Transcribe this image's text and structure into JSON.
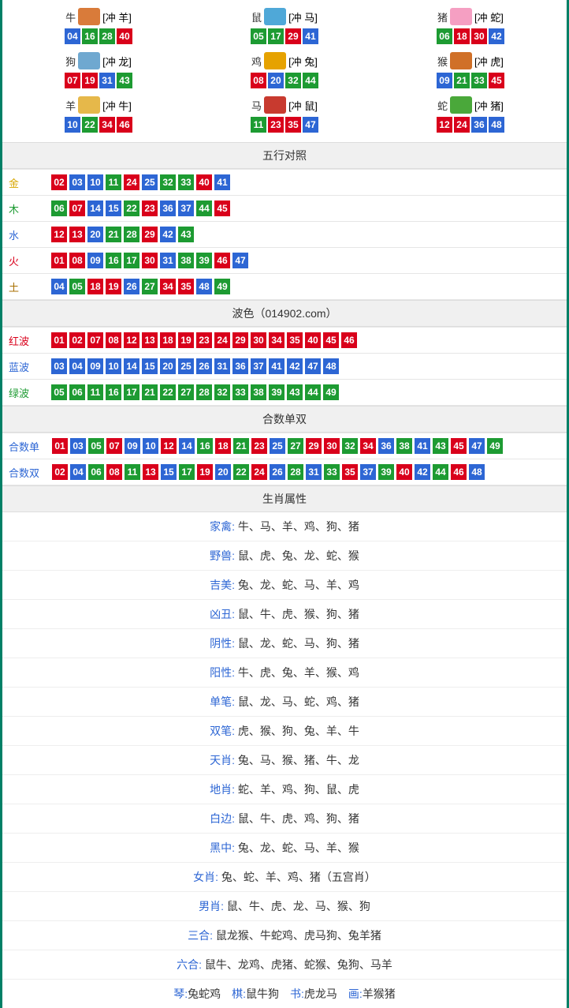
{
  "colors": {
    "ball_red": "#d9001b",
    "ball_blue": "#2d66d4",
    "ball_green": "#1d9b32",
    "border_outer": "#008066",
    "header_bg": "#f0f0f0"
  },
  "zodiac_icon_colors": {
    "牛": "#d97b3a",
    "鼠": "#4fa8d8",
    "猪": "#f59fc2",
    "狗": "#6fa8d0",
    "鸡": "#e6a200",
    "猴": "#d07028",
    "羊": "#e6b84a",
    "马": "#c83a2f",
    "蛇": "#4aa83a"
  },
  "zodiac": [
    {
      "name": "牛",
      "tag": "[冲 羊]",
      "nums": [
        [
          "04",
          "blue"
        ],
        [
          "16",
          "green"
        ],
        [
          "28",
          "green"
        ],
        [
          "40",
          "red"
        ]
      ]
    },
    {
      "name": "鼠",
      "tag": "[冲 马]",
      "nums": [
        [
          "05",
          "green"
        ],
        [
          "17",
          "green"
        ],
        [
          "29",
          "red"
        ],
        [
          "41",
          "blue"
        ]
      ]
    },
    {
      "name": "猪",
      "tag": "[冲 蛇]",
      "nums": [
        [
          "06",
          "green"
        ],
        [
          "18",
          "red"
        ],
        [
          "30",
          "red"
        ],
        [
          "42",
          "blue"
        ]
      ]
    },
    {
      "name": "狗",
      "tag": "[冲 龙]",
      "nums": [
        [
          "07",
          "red"
        ],
        [
          "19",
          "red"
        ],
        [
          "31",
          "blue"
        ],
        [
          "43",
          "green"
        ]
      ]
    },
    {
      "name": "鸡",
      "tag": "[冲 兔]",
      "nums": [
        [
          "08",
          "red"
        ],
        [
          "20",
          "blue"
        ],
        [
          "32",
          "green"
        ],
        [
          "44",
          "green"
        ]
      ]
    },
    {
      "name": "猴",
      "tag": "[冲 虎]",
      "nums": [
        [
          "09",
          "blue"
        ],
        [
          "21",
          "green"
        ],
        [
          "33",
          "green"
        ],
        [
          "45",
          "red"
        ]
      ]
    },
    {
      "name": "羊",
      "tag": "[冲 牛]",
      "nums": [
        [
          "10",
          "blue"
        ],
        [
          "22",
          "green"
        ],
        [
          "34",
          "red"
        ],
        [
          "46",
          "red"
        ]
      ]
    },
    {
      "name": "马",
      "tag": "[冲 鼠]",
      "nums": [
        [
          "11",
          "green"
        ],
        [
          "23",
          "red"
        ],
        [
          "35",
          "red"
        ],
        [
          "47",
          "blue"
        ]
      ]
    },
    {
      "name": "蛇",
      "tag": "[冲 猪]",
      "nums": [
        [
          "12",
          "red"
        ],
        [
          "24",
          "red"
        ],
        [
          "36",
          "blue"
        ],
        [
          "48",
          "blue"
        ]
      ]
    }
  ],
  "sections": {
    "wuxing": {
      "title": "五行对照",
      "rows": [
        {
          "label": "金",
          "labClass": "lab-jin",
          "nums": [
            [
              "02",
              "red"
            ],
            [
              "03",
              "blue"
            ],
            [
              "10",
              "blue"
            ],
            [
              "11",
              "green"
            ],
            [
              "24",
              "red"
            ],
            [
              "25",
              "blue"
            ],
            [
              "32",
              "green"
            ],
            [
              "33",
              "green"
            ],
            [
              "40",
              "red"
            ],
            [
              "41",
              "blue"
            ]
          ]
        },
        {
          "label": "木",
          "labClass": "lab-mu",
          "nums": [
            [
              "06",
              "green"
            ],
            [
              "07",
              "red"
            ],
            [
              "14",
              "blue"
            ],
            [
              "15",
              "blue"
            ],
            [
              "22",
              "green"
            ],
            [
              "23",
              "red"
            ],
            [
              "36",
              "blue"
            ],
            [
              "37",
              "blue"
            ],
            [
              "44",
              "green"
            ],
            [
              "45",
              "red"
            ]
          ]
        },
        {
          "label": "水",
          "labClass": "lab-shui",
          "nums": [
            [
              "12",
              "red"
            ],
            [
              "13",
              "red"
            ],
            [
              "20",
              "blue"
            ],
            [
              "21",
              "green"
            ],
            [
              "28",
              "green"
            ],
            [
              "29",
              "red"
            ],
            [
              "42",
              "blue"
            ],
            [
              "43",
              "green"
            ]
          ]
        },
        {
          "label": "火",
          "labClass": "lab-huo",
          "nums": [
            [
              "01",
              "red"
            ],
            [
              "08",
              "red"
            ],
            [
              "09",
              "blue"
            ],
            [
              "16",
              "green"
            ],
            [
              "17",
              "green"
            ],
            [
              "30",
              "red"
            ],
            [
              "31",
              "blue"
            ],
            [
              "38",
              "green"
            ],
            [
              "39",
              "green"
            ],
            [
              "46",
              "red"
            ],
            [
              "47",
              "blue"
            ]
          ]
        },
        {
          "label": "土",
          "labClass": "lab-tu",
          "nums": [
            [
              "04",
              "blue"
            ],
            [
              "05",
              "green"
            ],
            [
              "18",
              "red"
            ],
            [
              "19",
              "red"
            ],
            [
              "26",
              "blue"
            ],
            [
              "27",
              "green"
            ],
            [
              "34",
              "red"
            ],
            [
              "35",
              "red"
            ],
            [
              "48",
              "blue"
            ],
            [
              "49",
              "green"
            ]
          ]
        }
      ]
    },
    "bose": {
      "title": "波色（014902.com）",
      "rows": [
        {
          "label": "红波",
          "labClass": "lab-red",
          "nums": [
            [
              "01",
              "red"
            ],
            [
              "02",
              "red"
            ],
            [
              "07",
              "red"
            ],
            [
              "08",
              "red"
            ],
            [
              "12",
              "red"
            ],
            [
              "13",
              "red"
            ],
            [
              "18",
              "red"
            ],
            [
              "19",
              "red"
            ],
            [
              "23",
              "red"
            ],
            [
              "24",
              "red"
            ],
            [
              "29",
              "red"
            ],
            [
              "30",
              "red"
            ],
            [
              "34",
              "red"
            ],
            [
              "35",
              "red"
            ],
            [
              "40",
              "red"
            ],
            [
              "45",
              "red"
            ],
            [
              "46",
              "red"
            ]
          ]
        },
        {
          "label": "蓝波",
          "labClass": "lab-blue",
          "nums": [
            [
              "03",
              "blue"
            ],
            [
              "04",
              "blue"
            ],
            [
              "09",
              "blue"
            ],
            [
              "10",
              "blue"
            ],
            [
              "14",
              "blue"
            ],
            [
              "15",
              "blue"
            ],
            [
              "20",
              "blue"
            ],
            [
              "25",
              "blue"
            ],
            [
              "26",
              "blue"
            ],
            [
              "31",
              "blue"
            ],
            [
              "36",
              "blue"
            ],
            [
              "37",
              "blue"
            ],
            [
              "41",
              "blue"
            ],
            [
              "42",
              "blue"
            ],
            [
              "47",
              "blue"
            ],
            [
              "48",
              "blue"
            ]
          ]
        },
        {
          "label": "绿波",
          "labClass": "lab-green",
          "nums": [
            [
              "05",
              "green"
            ],
            [
              "06",
              "green"
            ],
            [
              "11",
              "green"
            ],
            [
              "16",
              "green"
            ],
            [
              "17",
              "green"
            ],
            [
              "21",
              "green"
            ],
            [
              "22",
              "green"
            ],
            [
              "27",
              "green"
            ],
            [
              "28",
              "green"
            ],
            [
              "32",
              "green"
            ],
            [
              "33",
              "green"
            ],
            [
              "38",
              "green"
            ],
            [
              "39",
              "green"
            ],
            [
              "43",
              "green"
            ],
            [
              "44",
              "green"
            ],
            [
              "49",
              "green"
            ]
          ]
        }
      ]
    },
    "heshu": {
      "title": "合数单双",
      "rows": [
        {
          "label": "合数单",
          "labClass": "lab-blue",
          "nums": [
            [
              "01",
              "red"
            ],
            [
              "03",
              "blue"
            ],
            [
              "05",
              "green"
            ],
            [
              "07",
              "red"
            ],
            [
              "09",
              "blue"
            ],
            [
              "10",
              "blue"
            ],
            [
              "12",
              "red"
            ],
            [
              "14",
              "blue"
            ],
            [
              "16",
              "green"
            ],
            [
              "18",
              "red"
            ],
            [
              "21",
              "green"
            ],
            [
              "23",
              "red"
            ],
            [
              "25",
              "blue"
            ],
            [
              "27",
              "green"
            ],
            [
              "29",
              "red"
            ],
            [
              "30",
              "red"
            ],
            [
              "32",
              "green"
            ],
            [
              "34",
              "red"
            ],
            [
              "36",
              "blue"
            ],
            [
              "38",
              "green"
            ],
            [
              "41",
              "blue"
            ],
            [
              "43",
              "green"
            ],
            [
              "45",
              "red"
            ],
            [
              "47",
              "blue"
            ],
            [
              "49",
              "green"
            ]
          ]
        },
        {
          "label": "合数双",
          "labClass": "lab-blue",
          "nums": [
            [
              "02",
              "red"
            ],
            [
              "04",
              "blue"
            ],
            [
              "06",
              "green"
            ],
            [
              "08",
              "red"
            ],
            [
              "11",
              "green"
            ],
            [
              "13",
              "red"
            ],
            [
              "15",
              "blue"
            ],
            [
              "17",
              "green"
            ],
            [
              "19",
              "red"
            ],
            [
              "20",
              "blue"
            ],
            [
              "22",
              "green"
            ],
            [
              "24",
              "red"
            ],
            [
              "26",
              "blue"
            ],
            [
              "28",
              "green"
            ],
            [
              "31",
              "blue"
            ],
            [
              "33",
              "green"
            ],
            [
              "35",
              "red"
            ],
            [
              "37",
              "blue"
            ],
            [
              "39",
              "green"
            ],
            [
              "40",
              "red"
            ],
            [
              "42",
              "blue"
            ],
            [
              "44",
              "green"
            ],
            [
              "46",
              "red"
            ],
            [
              "48",
              "blue"
            ]
          ]
        }
      ]
    },
    "shuxing": {
      "title": "生肖属性",
      "rows": [
        {
          "key": "家禽",
          "val": "牛、马、羊、鸡、狗、猪"
        },
        {
          "key": "野兽",
          "val": "鼠、虎、兔、龙、蛇、猴"
        },
        {
          "key": "吉美",
          "val": "兔、龙、蛇、马、羊、鸡"
        },
        {
          "key": "凶丑",
          "val": "鼠、牛、虎、猴、狗、猪"
        },
        {
          "key": "阴性",
          "val": "鼠、龙、蛇、马、狗、猪"
        },
        {
          "key": "阳性",
          "val": "牛、虎、兔、羊、猴、鸡"
        },
        {
          "key": "单笔",
          "val": "鼠、龙、马、蛇、鸡、猪"
        },
        {
          "key": "双笔",
          "val": "虎、猴、狗、兔、羊、牛"
        },
        {
          "key": "天肖",
          "val": "兔、马、猴、猪、牛、龙"
        },
        {
          "key": "地肖",
          "val": "蛇、羊、鸡、狗、鼠、虎"
        },
        {
          "key": "白边",
          "val": "鼠、牛、虎、鸡、狗、猪"
        },
        {
          "key": "黑中",
          "val": "兔、龙、蛇、马、羊、猴"
        },
        {
          "key": "女肖",
          "val": "兔、蛇、羊、鸡、猪（五宫肖）"
        },
        {
          "key": "男肖",
          "val": "鼠、牛、虎、龙、马、猴、狗"
        },
        {
          "key": "三合",
          "val": "鼠龙猴、牛蛇鸡、虎马狗、兔羊猪"
        },
        {
          "key": "六合",
          "val": "鼠牛、龙鸡、虎猪、蛇猴、兔狗、马羊"
        }
      ],
      "bottom_group": [
        {
          "key": "琴",
          "val": "兔蛇鸡"
        },
        {
          "key": "棋",
          "val": "鼠牛狗"
        },
        {
          "key": "书",
          "val": "虎龙马"
        },
        {
          "key": "画",
          "val": "羊猴猪"
        }
      ]
    }
  }
}
